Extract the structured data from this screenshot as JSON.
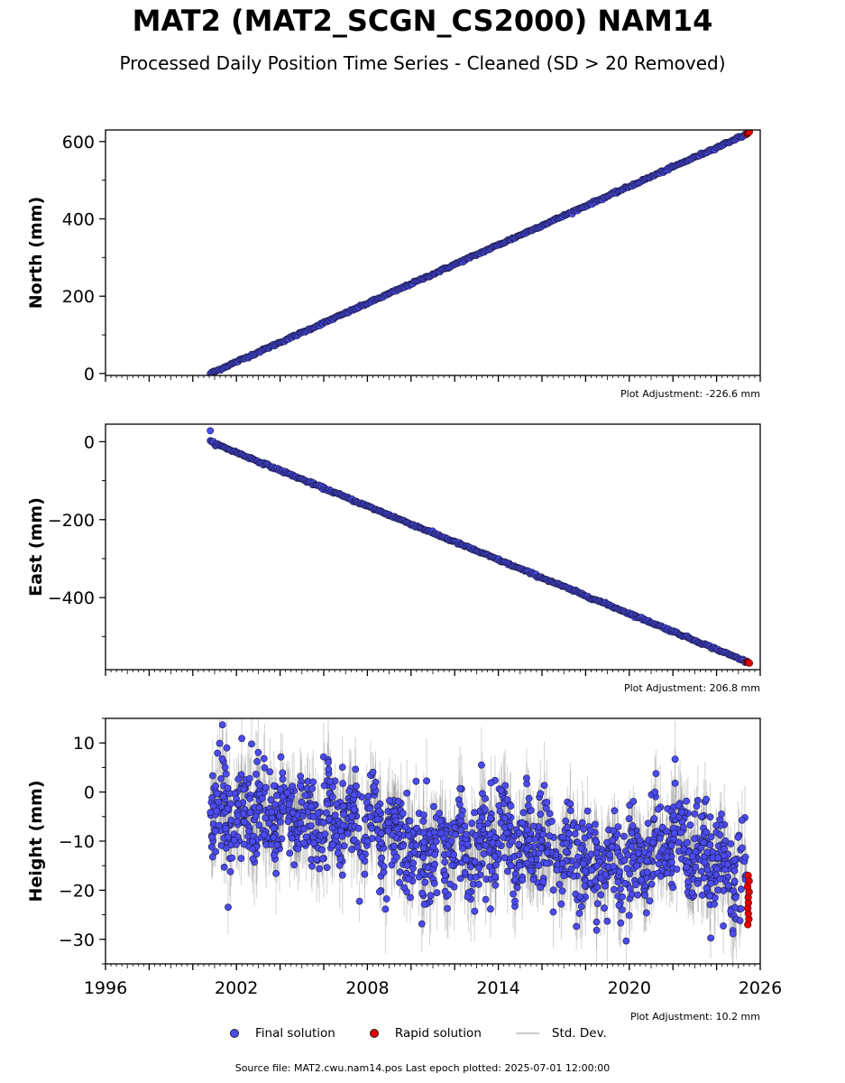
{
  "title": "MAT2 (MAT2_SCGN_CS2000) NAM14",
  "subtitle": "Processed Daily Position Time Series - Cleaned (SD > 20 Removed)",
  "legend": {
    "final": "Final solution",
    "rapid": "Rapid solution",
    "std": "Std. Dev."
  },
  "footer": "Source file: MAT2.cwu.nam14.pos  Last epoch plotted: 2025-07-01 12:00:00",
  "colors": {
    "final": "#4b4bf0",
    "rapid": "#e00000",
    "std": "#808080",
    "edge": "#1a1a40"
  },
  "chart_data": [
    {
      "type": "scatter",
      "ylabel": "North (mm)",
      "adjustment": "Plot Adjustment: -226.6 mm",
      "xlim": [
        1996,
        2026
      ],
      "ylim": [
        -5,
        630
      ],
      "yticks": [
        0,
        200,
        400,
        600
      ],
      "ytick_labels": [
        "0",
        "200",
        "400",
        "600"
      ],
      "series": [
        {
          "name": "Final solution",
          "x_range": [
            2000.8,
            2025.4
          ],
          "y_range": [
            0,
            620
          ],
          "trend_mm_per_yr": 25.2
        },
        {
          "name": "Rapid solution",
          "x_range": [
            2025.4,
            2025.5
          ],
          "y_range": [
            620,
            625
          ]
        }
      ]
    },
    {
      "type": "scatter",
      "ylabel": "East (mm)",
      "adjustment": "Plot Adjustment: 206.8 mm",
      "xlim": [
        1996,
        2026
      ],
      "ylim": [
        -585,
        45
      ],
      "yticks": [
        0,
        -200,
        -400
      ],
      "ytick_labels": [
        "0",
        "−200",
        "−400"
      ],
      "series": [
        {
          "name": "Final solution",
          "x_range": [
            2000.8,
            2025.4
          ],
          "y_range": [
            0,
            -565
          ],
          "trend_mm_per_yr": -23.0,
          "outlier": [
            2000.8,
            28
          ]
        },
        {
          "name": "Rapid solution",
          "x_range": [
            2025.4,
            2025.5
          ],
          "y_range": [
            -565,
            -568
          ]
        }
      ]
    },
    {
      "type": "scatter",
      "ylabel": "Height (mm)",
      "adjustment": "Plot Adjustment: 10.2 mm",
      "xlim": [
        1996,
        2026
      ],
      "ylim": [
        -35,
        15
      ],
      "yticks": [
        10,
        0,
        -10,
        -20,
        -30
      ],
      "ytick_labels": [
        "10",
        "0",
        "−10",
        "−20",
        "−30"
      ],
      "xticks": [
        1996,
        2002,
        2008,
        2014,
        2020,
        2026
      ],
      "xtick_labels": [
        "1996",
        "2002",
        "2008",
        "2014",
        "2020",
        "2026"
      ],
      "series": [
        {
          "name": "Final solution",
          "x_range": [
            2000.8,
            2025.4
          ],
          "mean_by_period": [
            [
              2001,
              -5
            ],
            [
              2004,
              -4
            ],
            [
              2008,
              -7
            ],
            [
              2011,
              -12
            ],
            [
              2014,
              -9
            ],
            [
              2017,
              -13
            ],
            [
              2019.5,
              -16
            ],
            [
              2022,
              -9
            ],
            [
              2024,
              -15
            ],
            [
              2025.3,
              -20
            ]
          ],
          "spread_sd": 5
        },
        {
          "name": "Rapid solution",
          "x_range": [
            2025.4,
            2025.5
          ],
          "y_range": [
            -27,
            -17
          ]
        }
      ]
    }
  ]
}
